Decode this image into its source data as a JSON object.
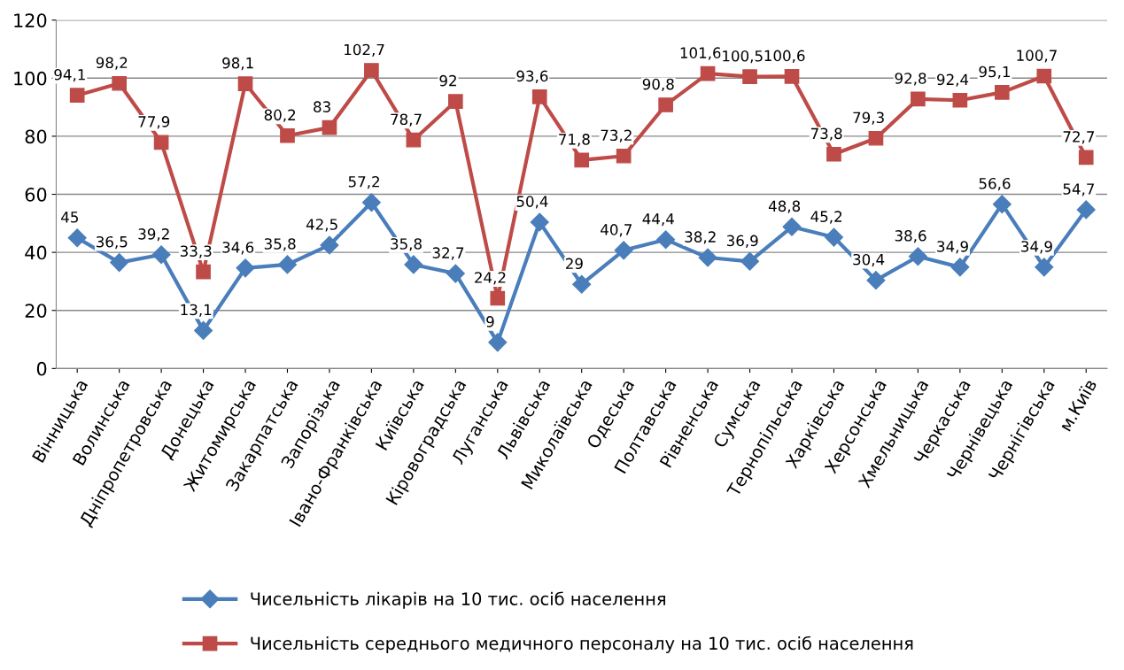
{
  "chart_data": {
    "type": "line",
    "categories": [
      "Вінницька",
      "Волинська",
      "Дніпропетровська",
      "Донецька",
      "Житомирська",
      "Закарпатська",
      "Запорізька",
      "Івано-Франківська",
      "Київська",
      "Кіровоградська",
      "Луганська",
      "Львівська",
      "Миколаївська",
      "Одеська",
      "Полтавська",
      "Рівненська",
      "Сумська",
      "Тернопільська",
      "Харківська",
      "Херсонська",
      "Хмельницька",
      "Черкаська",
      "Чернівецька",
      "Чернігівська",
      "м.Київ"
    ],
    "series": [
      {
        "name": "Чисельність лікарів на 10 тис. осіб населення",
        "color": "#4a7ebb",
        "marker": "diamond",
        "values": [
          45,
          36.5,
          39.2,
          13.1,
          34.6,
          35.8,
          42.5,
          57.2,
          35.8,
          32.7,
          9,
          50.4,
          29,
          40.7,
          44.4,
          38.2,
          36.9,
          48.8,
          45.2,
          30.4,
          38.6,
          34.9,
          56.6,
          34.9,
          54.7
        ],
        "value_labels": [
          "45",
          "36,5",
          "39,2",
          "13,1",
          "34,6",
          "35,8",
          "42,5",
          "57,2",
          "35,8",
          "32,7",
          "9",
          "50,4",
          "29",
          "40,7",
          "44,4",
          "38,2",
          "36,9",
          "48,8",
          "45,2",
          "30,4",
          "38,6",
          "34,9",
          "56,6",
          "34,9",
          "54,7"
        ]
      },
      {
        "name": "Чисельність середнього медичного персоналу на 10 тис. осіб населення",
        "color": "#be4b48",
        "marker": "square",
        "values": [
          94.1,
          98.2,
          77.9,
          33.3,
          98.1,
          80.2,
          83,
          102.7,
          78.7,
          92,
          24.2,
          93.6,
          71.8,
          73.2,
          90.8,
          101.6,
          100.5,
          100.6,
          73.8,
          79.3,
          92.8,
          92.4,
          95.1,
          100.7,
          72.7
        ],
        "value_labels": [
          "94,1",
          "98,2",
          "77,9",
          "33,3",
          "98,1",
          "80,2",
          "83",
          "102,7",
          "78,7",
          "92",
          "24,2",
          "93,6",
          "71,8",
          "73,2",
          "90,8",
          "101,6",
          "100,5",
          "100,6",
          "73,8",
          "79,3",
          "92,8",
          "92,4",
          "95,1",
          "100,7",
          "72,7"
        ]
      }
    ],
    "ylim": [
      0,
      120
    ],
    "yticks": [
      0,
      20,
      40,
      60,
      80,
      100,
      120
    ],
    "grid": "y",
    "legend": "bottom",
    "line_style": "solid"
  }
}
